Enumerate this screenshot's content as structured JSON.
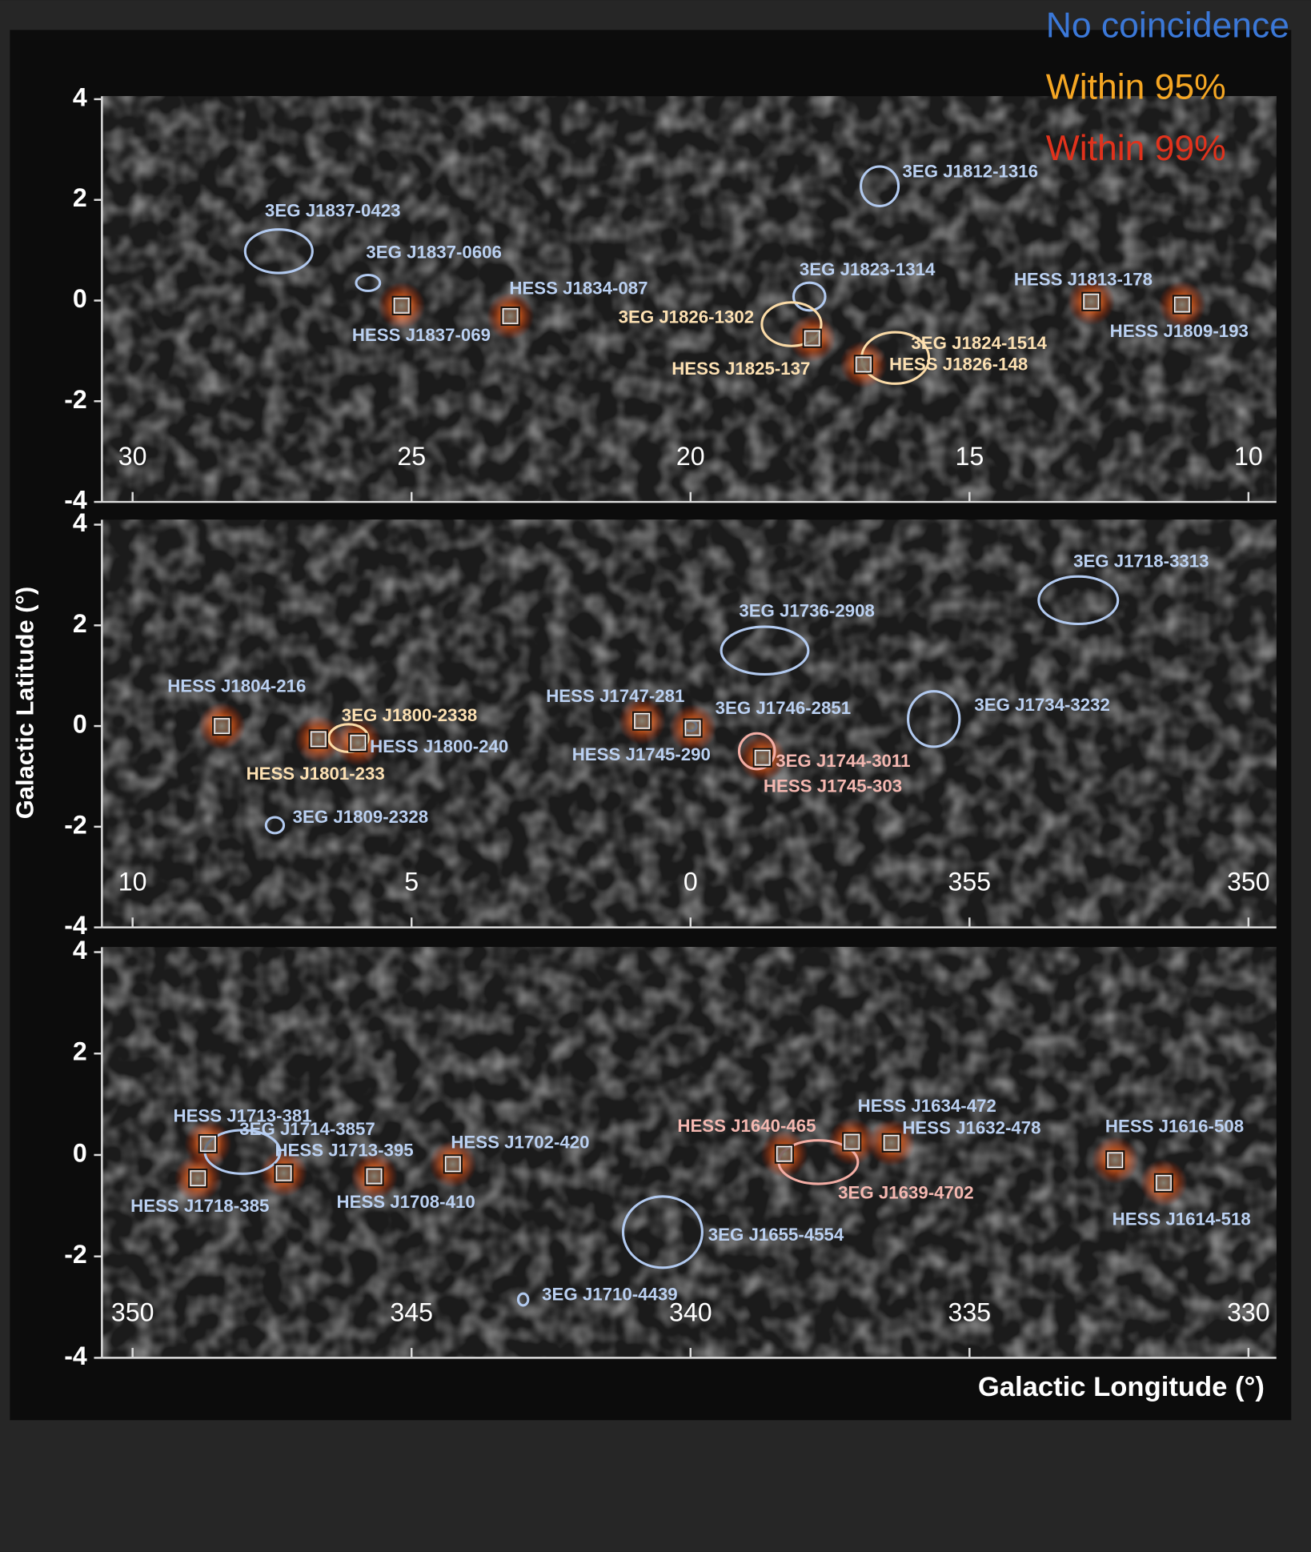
{
  "legend": [
    {
      "label": "No coincidence",
      "color": "#3b78d8"
    },
    {
      "label": "Within 95%",
      "color": "#f5a623"
    },
    {
      "label": "Within 99%",
      "color": "#e0321c"
    }
  ],
  "ylabel": "Galactic Latitude (°)",
  "xlabel": "Galactic Longitude (°)",
  "chart_data": [
    {
      "type": "scatter",
      "xlim": [
        30.55,
        9.5
      ],
      "xticks": [
        30,
        25,
        20,
        15,
        10
      ],
      "ylim": [
        -4,
        4
      ],
      "yticks": [
        -4,
        -2,
        0,
        2,
        4
      ],
      "hess": [
        {
          "label": "HESS J1837-069",
          "x": 25.18,
          "y": -0.1,
          "match": "No coincidence"
        },
        {
          "label": "HESS J1834-087",
          "x": 23.23,
          "y": -0.31,
          "match": "No coincidence"
        },
        {
          "label": "HESS J1825-137",
          "x": 17.82,
          "y": -0.75,
          "match": "Within 95%"
        },
        {
          "label": "HESS J1826-148",
          "x": 16.9,
          "y": -1.27,
          "match": "Within 95%"
        },
        {
          "label": "HESS J1813-178",
          "x": 12.82,
          "y": -0.02,
          "match": "No coincidence"
        },
        {
          "label": "HESS J1809-193",
          "x": 11.19,
          "y": -0.08,
          "match": "No coincidence"
        }
      ],
      "egret": [
        {
          "label": "3EG J1837-0423",
          "x": 27.38,
          "y": 0.98,
          "match": "No coincidence"
        },
        {
          "label": "3EG J1837-0606",
          "x": 25.78,
          "y": 0.35,
          "match": "No coincidence"
        },
        {
          "label": "3EG J1823-1314",
          "x": 17.87,
          "y": 0.08,
          "match": "No coincidence"
        },
        {
          "label": "3EG J1826-1302",
          "x": 18.19,
          "y": -0.47,
          "match": "Within 95%"
        },
        {
          "label": "3EG J1812-1316",
          "x": 16.61,
          "y": 2.27,
          "match": "No coincidence"
        },
        {
          "label": "3EG J1824-1514",
          "x": 16.33,
          "y": -1.14,
          "match": "Within 95%"
        }
      ]
    },
    {
      "type": "scatter",
      "xlim": [
        10.55,
        -10.5
      ],
      "xticks": [
        10,
        5,
        0,
        {
          "value": -5,
          "label": "355"
        },
        {
          "value": -10,
          "label": "350"
        }
      ],
      "ylim": [
        -4,
        4
      ],
      "yticks": [
        -4,
        -2,
        0,
        2,
        4
      ],
      "hess": [
        {
          "label": "HESS J1804-216",
          "x": 8.4,
          "y": 0,
          "match": "No coincidence"
        },
        {
          "label": "HESS J1801-233",
          "x": 6.67,
          "y": -0.26,
          "match": "Within 95%"
        },
        {
          "label": "HESS J1800-240",
          "x": 5.96,
          "y": -0.33,
          "match": "No coincidence"
        },
        {
          "label": "HESS J1747-281",
          "x": 0.87,
          "y": 0.1,
          "match": "No coincidence"
        },
        {
          "label": "HESS J1745-290",
          "x": -0.04,
          "y": -0.04,
          "match": "No coincidence"
        },
        {
          "label": "HESS J1745-303",
          "x": -1.29,
          "y": -0.63,
          "match": "Within 99%"
        }
      ],
      "egret": [
        {
          "label": "3EG J1800-2338",
          "x": 6.13,
          "y": -0.24,
          "match": "Within 95%"
        },
        {
          "label": "3EG J1809-2328",
          "x": 7.45,
          "y": -1.97,
          "match": "No coincidence"
        },
        {
          "label": "3EG J1746-2851",
          "x": 0,
          "y": 0,
          "match": "No coincidence"
        },
        {
          "label": "3EG J1744-3011",
          "x": -1.19,
          "y": -0.5,
          "match": "Within 99%"
        },
        {
          "label": "3EG J1736-2908",
          "x": -1.33,
          "y": 1.5,
          "match": "No coincidence"
        },
        {
          "label": "3EG J1734-3232",
          "x": -4.36,
          "y": 0.14,
          "match": "No coincidence"
        },
        {
          "label": "3EG J1718-3313",
          "x": -6.95,
          "y": 2.5,
          "match": "No coincidence"
        }
      ]
    },
    {
      "type": "scatter",
      "xlim": [
        350.55,
        329.5
      ],
      "xticks": [
        350,
        345,
        340,
        335,
        330
      ],
      "ylim": [
        -4,
        4
      ],
      "yticks": [
        -4,
        -2,
        0,
        2,
        4
      ],
      "hess": [
        {
          "label": "HESS J1713-381",
          "x": 348.65,
          "y": 0.22,
          "match": "No coincidence"
        },
        {
          "label": "HESS J1718-385",
          "x": 348.83,
          "y": -0.46,
          "match": "No coincidence"
        },
        {
          "label": "HESS J1713-395",
          "x": 347.29,
          "y": -0.36,
          "match": "No coincidence"
        },
        {
          "label": "HESS J1708-410",
          "x": 345.67,
          "y": -0.42,
          "match": "No coincidence"
        },
        {
          "label": "HESS J1702-420",
          "x": 344.26,
          "y": -0.18,
          "match": "No coincidence"
        },
        {
          "label": "HESS J1640-465",
          "x": 338.32,
          "y": 0.02,
          "match": "Within 99%"
        },
        {
          "label": "HESS J1634-472",
          "x": 337.11,
          "y": 0.26,
          "match": "No coincidence"
        },
        {
          "label": "HESS J1632-478",
          "x": 336.4,
          "y": 0.24,
          "match": "No coincidence"
        },
        {
          "label": "HESS J1616-508",
          "x": 332.39,
          "y": -0.1,
          "match": "No coincidence"
        },
        {
          "label": "HESS J1614-518",
          "x": 331.52,
          "y": -0.55,
          "match": "No coincidence"
        }
      ],
      "egret": [
        {
          "label": "3EG J1714-3857",
          "x": 348.03,
          "y": 0.06,
          "match": "No coincidence"
        },
        {
          "label": "3EG J1639-4702",
          "x": 337.71,
          "y": -0.14,
          "match": "Within 99%"
        },
        {
          "label": "3EG J1655-4554",
          "x": 340.5,
          "y": -1.52,
          "match": "No coincidence"
        },
        {
          "label": "3EG J1710-4439",
          "x": 343.0,
          "y": -2.85,
          "match": "No coincidence"
        }
      ]
    }
  ]
}
